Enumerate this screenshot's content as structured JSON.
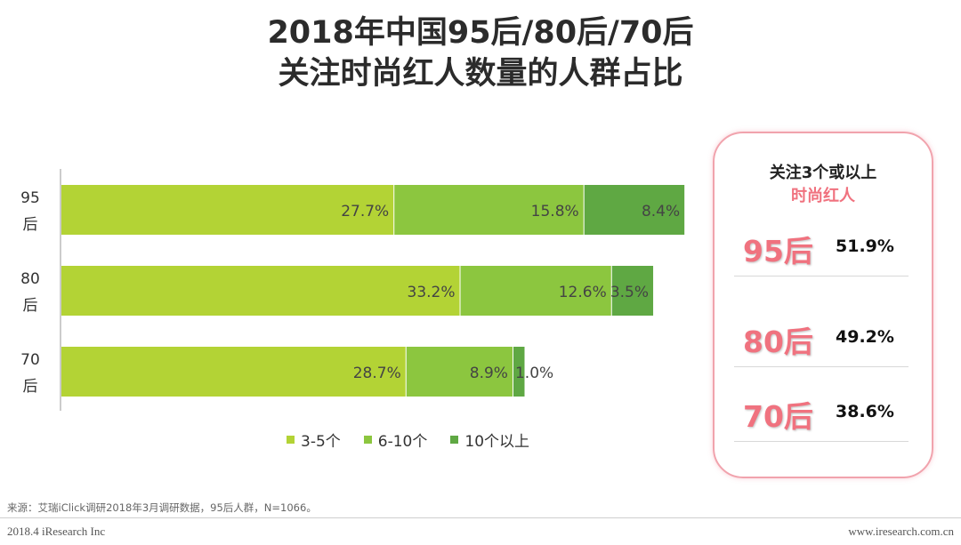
{
  "title": {
    "line1": "2018年中国95后/80后/70后",
    "line2": "关注时尚红人数量的人群占比"
  },
  "colors": {
    "s1": "#b3d335",
    "s2": "#8cc63f",
    "s3": "#5fa843",
    "accent": "#f0727f"
  },
  "chart_data": {
    "type": "bar",
    "orientation": "horizontal",
    "stacked": true,
    "categories": [
      [
        "95",
        "后"
      ],
      [
        "80",
        "后"
      ],
      [
        "70",
        "后"
      ]
    ],
    "series": [
      {
        "name": "3-5个",
        "values": [
          27.7,
          33.2,
          28.7
        ],
        "labels": [
          "27.7%",
          "33.2%",
          "28.7%"
        ]
      },
      {
        "name": "6-10个",
        "values": [
          15.8,
          12.6,
          8.9
        ],
        "labels": [
          "15.8%",
          "12.6%",
          "8.9%"
        ]
      },
      {
        "name": "10个以上",
        "values": [
          8.4,
          3.5,
          1.0
        ],
        "labels": [
          "8.4%",
          "3.5%",
          "1.0%"
        ]
      }
    ],
    "xlim": [
      0,
      52
    ],
    "legend_position": "bottom"
  },
  "panel": {
    "heading_line1": "关注3个或以上",
    "heading_line2": "时尚红人",
    "stats": [
      {
        "label": "95后",
        "value": "51.9%"
      },
      {
        "label": "80后",
        "value": "49.2%"
      },
      {
        "label": "70后",
        "value": "38.6%"
      }
    ]
  },
  "source": "来源：艾瑞iClick调研2018年3月调研数据，95后人群，N=1066。",
  "footer": {
    "left": "2018.4 iResearch Inc",
    "right": "www.iresearch.com.cn"
  }
}
